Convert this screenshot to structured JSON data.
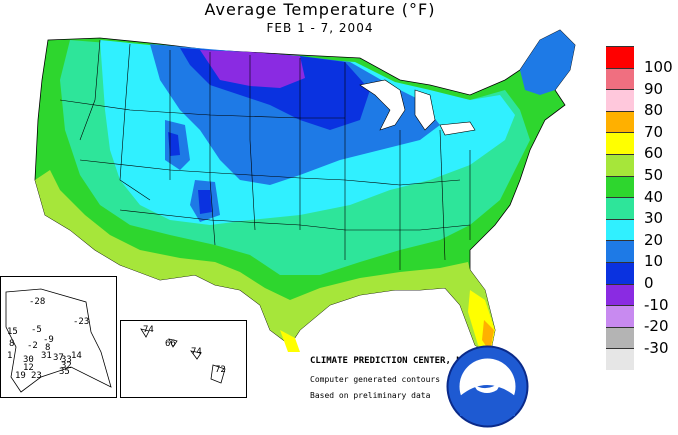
{
  "title": "Average Temperature (°F)",
  "subtitle": "FEB 1 - 7, 2004",
  "credits": {
    "org": "CLIMATE PREDICTION CENTER, NOAA",
    "line1": "Computer generated contours",
    "line2": "Based on preliminary data"
  },
  "logo_text": "NOAA",
  "legend": [
    {
      "label": "100",
      "color": "#ff0000"
    },
    {
      "label": "90",
      "color": "#f06f80"
    },
    {
      "label": "80",
      "color": "#ffc8dc"
    },
    {
      "label": "70",
      "color": "#ffb000"
    },
    {
      "label": "60",
      "color": "#ffff00"
    },
    {
      "label": "50",
      "color": "#a6e63a"
    },
    {
      "label": "40",
      "color": "#2ed62e"
    },
    {
      "label": "30",
      "color": "#2ee59a"
    },
    {
      "label": "20",
      "color": "#30f0ff"
    },
    {
      "label": "10",
      "color": "#1e7ae6"
    },
    {
      "label": "0",
      "color": "#0a32e0"
    },
    {
      "label": "-10",
      "color": "#8a2be2"
    },
    {
      "label": "-20",
      "color": "#c88af0"
    },
    {
      "label": "-30",
      "color": "#b4b4b4"
    },
    {
      "label": "",
      "color": "#e6e6e6"
    }
  ],
  "alaska_values": [
    "-28",
    "-23",
    "15",
    "-5",
    "-9",
    "8",
    "-2",
    "1",
    "8",
    "14",
    "37",
    "30",
    "31",
    "33",
    "32",
    "35",
    "12",
    "19",
    "23"
  ],
  "hawaii_values": [
    "74",
    "66",
    "74",
    "72"
  ]
}
